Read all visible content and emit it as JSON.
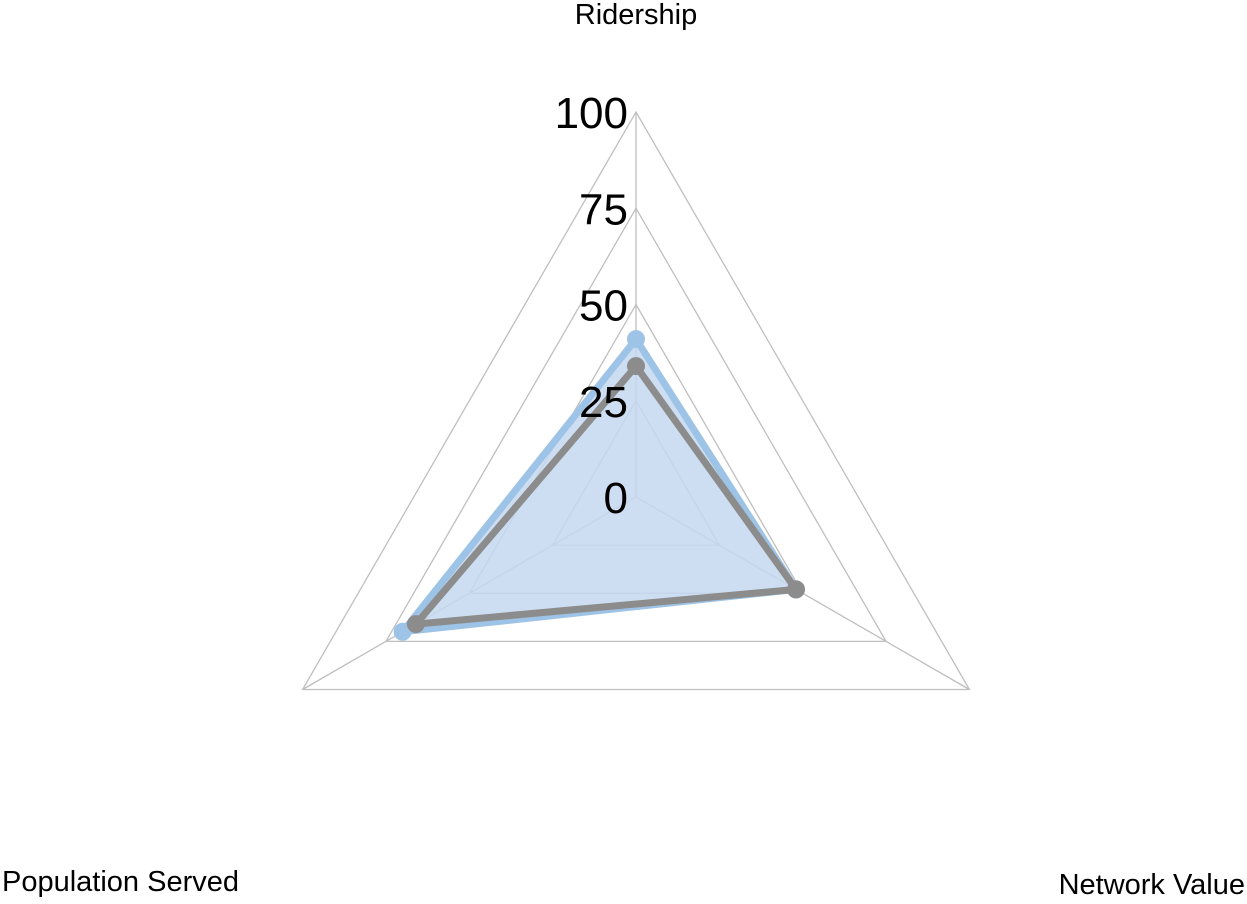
{
  "chart_data": {
    "type": "radar",
    "title": "",
    "axes": [
      "Ridership",
      "Network Value",
      "Population Served"
    ],
    "r_ticks": [
      "0",
      "25",
      "50",
      "75",
      "100"
    ],
    "r_range": [
      0,
      100
    ],
    "grid": true,
    "legend": "none",
    "series": [
      {
        "values": [
          41,
          48,
          70
        ],
        "color": "#9dc3e6",
        "fill": "#c5d8f0",
        "filled": true
      },
      {
        "values": [
          34,
          48,
          66
        ],
        "color": "#8c8c8c",
        "filled": false
      }
    ]
  }
}
